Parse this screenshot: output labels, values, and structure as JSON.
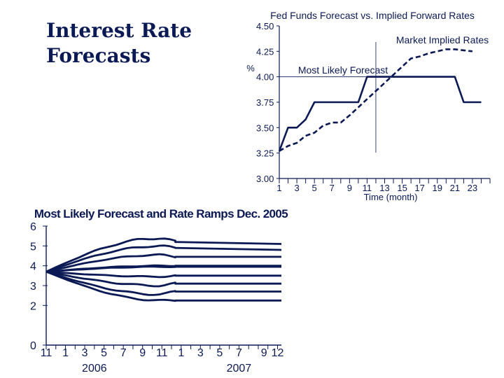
{
  "slide": {
    "title_line1": "Interest Rate",
    "title_line2": "Forecasts"
  },
  "colors": {
    "ink": "#0b1a55",
    "background": "#ffffff"
  },
  "chart_data": [
    {
      "type": "line",
      "title": "Fed Funds Forecast vs. Implied Forward Rates",
      "xlabel": "Time (month)",
      "ylabel": "%",
      "ylim": [
        3.0,
        4.5
      ],
      "xlim": [
        1,
        25
      ],
      "yticks": [
        "4.50",
        "4.25",
        "4.00",
        "3.75",
        "3.50",
        "3.25",
        "3.00"
      ],
      "ytick_values": [
        4.5,
        4.25,
        4.0,
        3.75,
        3.5,
        3.25,
        3.0
      ],
      "xticks": [
        "1",
        "3",
        "5",
        "7",
        "9",
        "11",
        "13",
        "15",
        "17",
        "19",
        "21",
        "23"
      ],
      "xtick_values": [
        1,
        3,
        5,
        7,
        9,
        11,
        13,
        15,
        17,
        19,
        21,
        23
      ],
      "annotations": [
        "Market Implied Rates",
        "Most Likely Forecast"
      ],
      "series": [
        {
          "name": "Most Likely Forecast",
          "style": "solid",
          "points": [
            [
              1,
              3.27
            ],
            [
              2,
              3.5
            ],
            [
              3,
              3.5
            ],
            [
              4,
              3.58
            ],
            [
              5,
              3.75
            ],
            [
              6,
              3.75
            ],
            [
              7,
              3.75
            ],
            [
              8,
              3.75
            ],
            [
              9,
              3.75
            ],
            [
              10,
              3.75
            ],
            [
              11,
              4.0
            ],
            [
              12,
              4.0
            ],
            [
              13,
              4.0
            ],
            [
              14,
              4.0
            ],
            [
              15,
              4.0
            ],
            [
              16,
              4.0
            ],
            [
              17,
              4.0
            ],
            [
              18,
              4.0
            ],
            [
              19,
              4.0
            ],
            [
              20,
              4.0
            ],
            [
              21,
              4.0
            ],
            [
              22,
              3.75
            ],
            [
              23,
              3.75
            ],
            [
              24,
              3.75
            ]
          ]
        },
        {
          "name": "Market Implied Rates",
          "style": "dashed",
          "points": [
            [
              1,
              3.27
            ],
            [
              2,
              3.32
            ],
            [
              3,
              3.35
            ],
            [
              4,
              3.42
            ],
            [
              5,
              3.45
            ],
            [
              6,
              3.52
            ],
            [
              7,
              3.55
            ],
            [
              8,
              3.55
            ],
            [
              9,
              3.62
            ],
            [
              10,
              3.7
            ],
            [
              11,
              3.78
            ],
            [
              12,
              3.86
            ],
            [
              13,
              3.94
            ],
            [
              14,
              4.02
            ],
            [
              15,
              4.1
            ],
            [
              16,
              4.18
            ],
            [
              17,
              4.2
            ],
            [
              18,
              4.23
            ],
            [
              19,
              4.25
            ],
            [
              20,
              4.27
            ],
            [
              21,
              4.27
            ],
            [
              22,
              4.26
            ],
            [
              23,
              4.25
            ]
          ]
        }
      ],
      "crosshair": {
        "x": 12,
        "y": 4.0
      }
    },
    {
      "type": "line",
      "title": "Most Likely Forecast and Rate Ramps Dec. 2005",
      "ylabel": "",
      "ylim": [
        0,
        6
      ],
      "yticks": [
        "6",
        "5",
        "4",
        "3",
        "2",
        "0"
      ],
      "ytick_values": [
        6,
        5,
        4,
        3,
        2,
        0
      ],
      "xticks": [
        "11",
        "1",
        "3",
        "5",
        "7",
        "9",
        "11",
        "1",
        "3",
        "5",
        "7",
        "9",
        "12"
      ],
      "xtick_positions": [
        0,
        1,
        2,
        3,
        4,
        5,
        6,
        7,
        8,
        9,
        10,
        11.3,
        12
      ],
      "xgroups": [
        {
          "label": "2006",
          "position": 2.5
        },
        {
          "label": "2007",
          "position": 10.0
        }
      ],
      "xlim": [
        0,
        12.2
      ],
      "start": [
        0,
        3.7
      ],
      "ramp_end_x": 6.7,
      "series": [
        {
          "ends": [
            5.2,
            5.1
          ],
          "peak": [
            6.0,
            5.4
          ],
          "wiggle": 0.07
        },
        {
          "ends": [
            4.9,
            4.8
          ],
          "peak": [
            6.0,
            5.0
          ],
          "wiggle": 0.05
        },
        {
          "ends": [
            4.45,
            4.45
          ],
          "peak": [
            6.0,
            4.55
          ],
          "wiggle": 0.04
        },
        {
          "ends": [
            4.0,
            4.0
          ],
          "peak": [
            6.0,
            4.0
          ],
          "wiggle": 0.02
        },
        {
          "ends": [
            3.95,
            3.95
          ],
          "peak": [
            6.0,
            3.95
          ],
          "wiggle": 0.02
        },
        {
          "ends": [
            3.5,
            3.5
          ],
          "peak": [
            6.0,
            3.45
          ],
          "wiggle": 0.03
        },
        {
          "ends": [
            3.1,
            3.1
          ],
          "peak": [
            6.0,
            3.0
          ],
          "wiggle": 0.05
        },
        {
          "ends": [
            2.7,
            2.7
          ],
          "peak": [
            6.0,
            2.55
          ],
          "wiggle": 0.05
        },
        {
          "ends": [
            2.25,
            2.25
          ],
          "peak": [
            6.0,
            2.25
          ],
          "wiggle": 0.04
        }
      ]
    }
  ]
}
